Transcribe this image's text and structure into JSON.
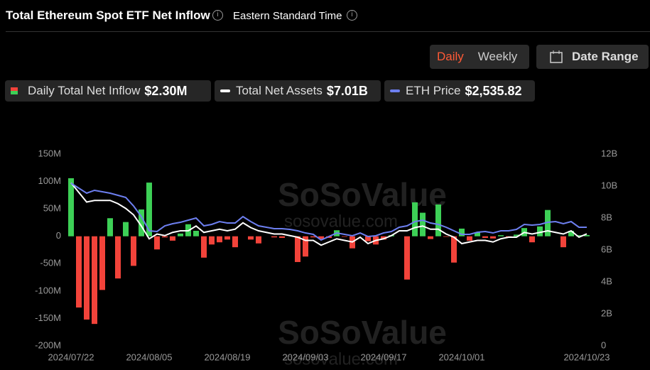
{
  "header": {
    "title": "Total Ethereum Spot ETF Net Inflow",
    "timezone": "Eastern Standard Time",
    "buttons": [
      "Daily",
      "Weekly",
      "Date Range"
    ]
  },
  "chart_data": {
    "type": "bar",
    "watermark": "SoSoValue",
    "watermark_url": "sosovalue.com",
    "categories": [
      "2024/07/22",
      null,
      null,
      null,
      null,
      null,
      null,
      null,
      null,
      null,
      "2024/08/05",
      null,
      null,
      null,
      null,
      null,
      null,
      null,
      null,
      null,
      "2024/08/19",
      null,
      null,
      null,
      null,
      null,
      null,
      null,
      null,
      null,
      "2024/09/03",
      null,
      null,
      null,
      null,
      null,
      null,
      null,
      null,
      null,
      "2024/09/17",
      null,
      null,
      null,
      null,
      null,
      null,
      null,
      null,
      null,
      "2024/10/01",
      null,
      null,
      null,
      null,
      null,
      null,
      null,
      null,
      null,
      null,
      null,
      null,
      null,
      null,
      null,
      "2024/10/23"
    ],
    "series": [
      {
        "name": "Daily Total Net Inflow",
        "latest_label": "$2.30M",
        "type": "bar",
        "axis": "y",
        "colors": {
          "positive": "#3dd056",
          "negative": "#f2433a"
        },
        "values": [
          106,
          -130,
          -152,
          -160,
          -98,
          33,
          -77,
          26,
          -54,
          49,
          98,
          -24,
          -2,
          -8,
          5,
          22,
          10,
          -39,
          -15,
          -11,
          -6,
          -20,
          0,
          -6,
          -13,
          0,
          -2,
          -3,
          0,
          -47,
          -37,
          -2,
          -5,
          -3,
          11,
          -1,
          -22,
          0,
          -9,
          -15,
          -6,
          2,
          0,
          -79,
          62,
          43,
          -5,
          58,
          -1,
          -48,
          14,
          -8,
          7,
          -3,
          -4,
          2,
          -2,
          3,
          15,
          -11,
          18,
          48,
          0,
          -20,
          10,
          2,
          2.3
        ]
      },
      {
        "name": "Total Net Assets",
        "latest_label": "$7.01B",
        "type": "line",
        "axis": "y2",
        "color": "#ffffff",
        "values": [
          10.2,
          9.6,
          9.0,
          9.1,
          9.1,
          9.1,
          8.9,
          8.6,
          8.2,
          7.5,
          6.7,
          7.0,
          6.9,
          7.1,
          7.2,
          7.2,
          7.5,
          7.1,
          7.2,
          7.3,
          7.2,
          7.3,
          7.7,
          7.4,
          7.2,
          7.1,
          7.0,
          7.0,
          6.9,
          6.8,
          6.6,
          6.6,
          6.3,
          6.5,
          6.7,
          6.6,
          6.5,
          6.8,
          6.4,
          6.6,
          6.7,
          6.9,
          7.2,
          7.2,
          7.4,
          7.5,
          7.3,
          7.3,
          7.0,
          6.8,
          6.4,
          6.5,
          6.6,
          6.6,
          6.5,
          6.7,
          6.8,
          6.8,
          7.1,
          7.0,
          7.1,
          7.2,
          7.1,
          7.0,
          7.2,
          6.8,
          7.01
        ]
      },
      {
        "name": "ETH Price",
        "latest_label": "$2,535.82",
        "type": "line",
        "axis": "y3",
        "color": "#6d7ff0",
        "values": [
          3477,
          3371,
          3265,
          3326,
          3295,
          3265,
          3219,
          3174,
          2991,
          2764,
          2460,
          2445,
          2566,
          2612,
          2642,
          2688,
          2733,
          2566,
          2597,
          2657,
          2627,
          2627,
          2764,
          2657,
          2566,
          2536,
          2506,
          2506,
          2490,
          2460,
          2414,
          2384,
          2263,
          2338,
          2414,
          2384,
          2354,
          2414,
          2338,
          2354,
          2414,
          2445,
          2536,
          2566,
          2657,
          2688,
          2627,
          2597,
          2536,
          2460,
          2384,
          2384,
          2430,
          2445,
          2414,
          2460,
          2460,
          2490,
          2597,
          2582,
          2597,
          2642,
          2657,
          2612,
          2657,
          2536,
          2535.82
        ]
      }
    ],
    "ylim": [
      -200,
      150
    ],
    "yticks": [
      {
        "value": 150,
        "label": "150M"
      },
      {
        "value": 100,
        "label": "100M"
      },
      {
        "value": 50,
        "label": "50M"
      },
      0,
      {
        "value": -50,
        "label": "-50M"
      },
      {
        "value": -100,
        "label": "-100M"
      },
      {
        "value": -150,
        "label": "-150M"
      },
      {
        "value": -200,
        "label": "-200M"
      }
    ],
    "y2lim": [
      0,
      12
    ],
    "y2ticks": [
      {
        "value": 12,
        "label": "12B"
      },
      {
        "value": 10,
        "label": "10B"
      },
      {
        "value": 8,
        "label": "8B"
      },
      {
        "value": 6,
        "label": "6B"
      },
      {
        "value": 4,
        "label": "4B"
      },
      {
        "value": 2,
        "label": "2B"
      },
      0
    ],
    "y3lim": [
      0,
      4100
    ]
  }
}
